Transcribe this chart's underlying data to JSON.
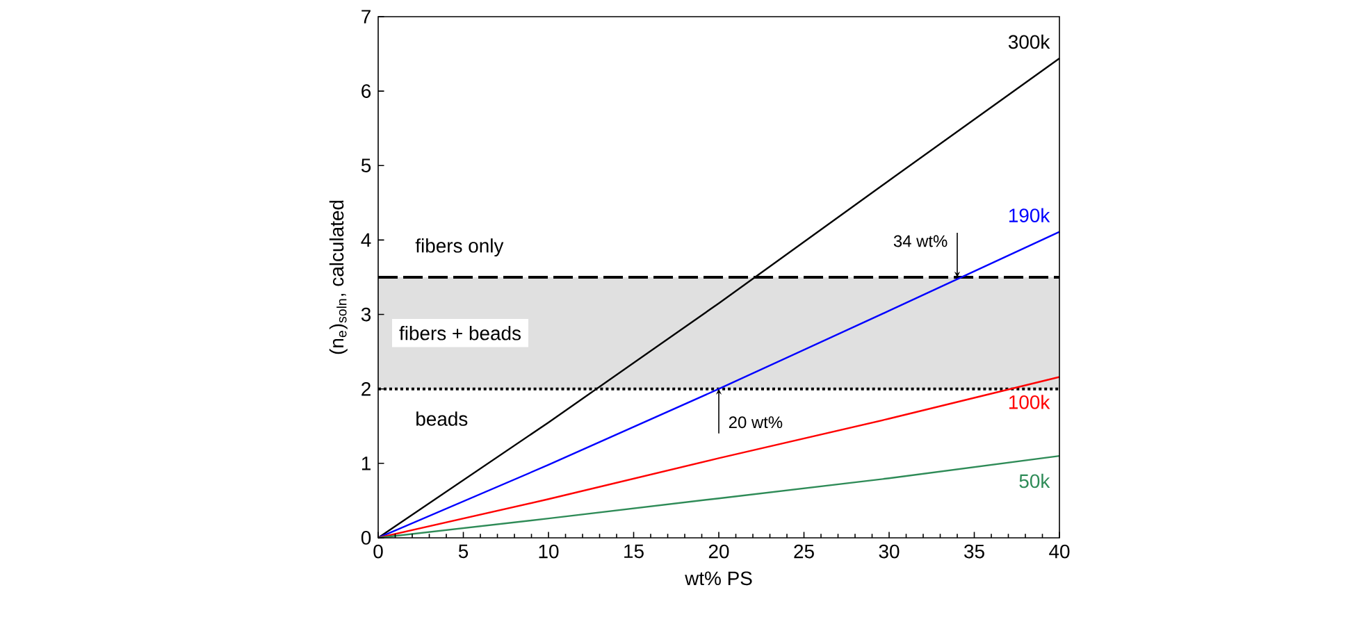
{
  "chart_data": {
    "type": "line",
    "xlabel": "wt% PS",
    "ylabel": "(n$_{e}$)$_{soln}$, calculated",
    "x": [
      0,
      10,
      20,
      30,
      40
    ],
    "series": [
      {
        "name": "300k",
        "color": "#000000",
        "values": [
          0,
          1.55,
          3.15,
          4.8,
          6.44
        ]
      },
      {
        "name": "190k",
        "color": "#0000ff",
        "values": [
          0,
          0.98,
          2.0,
          3.05,
          4.11
        ]
      },
      {
        "name": "100k",
        "color": "#ff0000",
        "values": [
          0,
          0.52,
          1.07,
          1.6,
          2.16
        ]
      },
      {
        "name": "50k",
        "color": "#2e8b57",
        "values": [
          0,
          0.26,
          0.53,
          0.8,
          1.1
        ]
      }
    ],
    "xlim": [
      0,
      40
    ],
    "ylim": [
      0,
      7
    ],
    "xticks": [
      0,
      5,
      10,
      15,
      20,
      25,
      30,
      35,
      40
    ],
    "yticks": [
      0,
      1,
      2,
      3,
      4,
      5,
      6,
      7
    ],
    "ref_lines": [
      {
        "axis": "y",
        "value": 3.5,
        "line_style": "dashed"
      },
      {
        "axis": "y",
        "value": 2,
        "line_style": "dotted"
      }
    ],
    "bands": [
      {
        "axis": "y",
        "from": 2,
        "to": 3.5,
        "label": "fibers + beads",
        "color": "#e0e0e0"
      }
    ],
    "annotations": [
      "fibers only",
      "beads",
      {
        "text": "34 wt%",
        "x": 34,
        "y": 3.5
      },
      {
        "text": "20 wt%",
        "x": 20,
        "y": 2
      }
    ],
    "marker": "none",
    "line_style": "solid"
  }
}
